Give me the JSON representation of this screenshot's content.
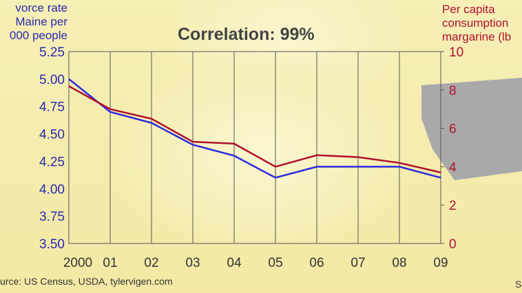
{
  "chart_data": {
    "type": "line",
    "title": "Correlation: 99%",
    "ylabel_left": [
      "vorce rate",
      "Maine per",
      "000 people"
    ],
    "ylabel_right": [
      "Per capita",
      "consumption",
      "margarine (lb"
    ],
    "categories": [
      "2000",
      "01",
      "02",
      "03",
      "04",
      "05",
      "06",
      "07",
      "08",
      "09"
    ],
    "ylim_left": [
      3.5,
      5.25
    ],
    "yticks_left": [
      "5.25",
      "5.00",
      "4.75",
      "4.50",
      "4.25",
      "4.00",
      "3.75",
      "3.50"
    ],
    "ylim_right": [
      0,
      10
    ],
    "yticks_right": [
      "10",
      "8",
      "6",
      "4",
      "2",
      "0"
    ],
    "series": [
      {
        "name": "Divorce rate in Maine",
        "axis": "left",
        "color": "#2a2ae0",
        "values": [
          5.0,
          4.7,
          4.6,
          4.4,
          4.3,
          4.1,
          4.2,
          4.2,
          4.2,
          4.1
        ]
      },
      {
        "name": "Per capita consumption of margarine",
        "axis": "right",
        "color": "#b0102a",
        "values": [
          8.2,
          7.0,
          6.5,
          5.3,
          5.2,
          4.0,
          4.6,
          4.5,
          4.2,
          3.7
        ]
      }
    ],
    "grid": "vertical",
    "source": "urce: US Census, USDA, tylervigen.com",
    "corner_text": "S"
  }
}
